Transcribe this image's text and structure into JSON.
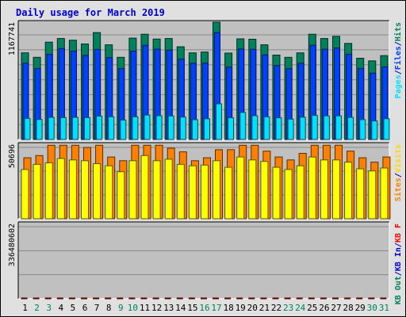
{
  "chart_data": {
    "type": "bar",
    "title": "Daily usage for March 2019",
    "categories": [
      "1",
      "2",
      "3",
      "4",
      "5",
      "6",
      "7",
      "8",
      "9",
      "10",
      "11",
      "12",
      "13",
      "14",
      "15",
      "16",
      "17",
      "18",
      "19",
      "20",
      "21",
      "22",
      "23",
      "24",
      "25",
      "26",
      "27",
      "28",
      "29",
      "30",
      "31"
    ],
    "weekend_days": [
      "2",
      "3",
      "9",
      "10",
      "16",
      "17",
      "23",
      "24",
      "30",
      "31"
    ],
    "panels": [
      {
        "id": "hits",
        "ymax_label": "1167741",
        "ylim": [
          0,
          1167741
        ],
        "legend": [
          {
            "text": "Hits",
            "color": "#00805c"
          },
          {
            "text": "/",
            "color": "#0000cc"
          },
          {
            "text": "Files",
            "color": "#0040ff"
          },
          {
            "text": "/",
            "color": "#0000cc"
          },
          {
            "text": "Pages",
            "color": "#00e0ff"
          }
        ],
        "series": [
          {
            "name": "Hits",
            "color": "#00805c",
            "values": [
              862000,
              818000,
              969000,
              1005000,
              989000,
              951000,
              1064000,
              943000,
              818000,
              1009000,
              1048000,
              1000000,
              1005000,
              923000,
              862000,
              870000,
              1167741,
              860000,
              1002000,
              998000,
              943000,
              840000,
              818000,
              862000,
              1048000,
              1005000,
              1027000,
              956000,
              809000,
              783000,
              835000
            ]
          },
          {
            "name": "Files",
            "color": "#0040ff",
            "values": [
              759000,
              707000,
              848000,
              905000,
              880000,
              837000,
              896000,
              816000,
              705000,
              880000,
              937000,
              899000,
              889000,
              801000,
              759000,
              759000,
              1064000,
              721000,
              901000,
              897000,
              843000,
              736000,
              705000,
              759000,
              937000,
              899000,
              911000,
              849000,
              707000,
              660000,
              723000
            ]
          },
          {
            "name": "Pages",
            "color": "#00e0ff",
            "values": [
              210000,
              200000,
              220000,
              218000,
              220000,
              218000,
              233000,
              226000,
              193000,
              226000,
              244000,
              237000,
              234000,
              223000,
              197000,
              207000,
              355000,
              216000,
              269000,
              237000,
              226000,
              216000,
              203000,
              222000,
              240000,
              234000,
              235000,
              220000,
              198000,
              185000,
              207000
            ]
          }
        ]
      },
      {
        "id": "visits",
        "ymax_label": "50696",
        "ylim": [
          0,
          50696
        ],
        "legend": [
          {
            "text": "Visits",
            "color": "#ffd700"
          },
          {
            "text": "/",
            "color": "#0000cc"
          },
          {
            "text": "Sites",
            "color": "#ff8000"
          }
        ],
        "series": [
          {
            "name": "Visits",
            "color": "#ffff00",
            "values": [
              33500,
              37000,
              38000,
              41000,
              40000,
              39500,
              37500,
              36000,
              32000,
              39500,
              43000,
              39500,
              40500,
              37000,
              36000,
              36500,
              39500,
              35000,
              42000,
              40000,
              39000,
              35000,
              33500,
              36000,
              42000,
              40000,
              40000,
              38500,
              34000,
              32500,
              34500
            ]
          },
          {
            "name": "Sites",
            "color": "#ff8000",
            "values": [
              41500,
              43000,
              50000,
              50000,
              50000,
              48500,
              50000,
              42000,
              39500,
              50000,
              50000,
              50000,
              48000,
              45500,
              39500,
              41500,
              47000,
              47000,
              50000,
              50000,
              46000,
              42000,
              40000,
              44500,
              50000,
              50000,
              50000,
              46000,
              41500,
              38500,
              42000
            ]
          }
        ]
      },
      {
        "id": "kbytes",
        "ymax_label": "336480602",
        "ylim": [
          0,
          336480602
        ],
        "legend": [
          {
            "text": "KB F",
            "color": "#ff0000"
          },
          {
            "text": "/",
            "color": "#0000cc"
          },
          {
            "text": "KB In",
            "color": "#0000cc"
          },
          {
            "text": "/",
            "color": "#0000cc"
          },
          {
            "text": "KB Out",
            "color": "#00805c"
          }
        ],
        "series": [
          {
            "name": "KB F",
            "color": "#ff0000",
            "values": [
              261000,
              250000,
              294000,
              294000,
              276000,
              270000,
              288000,
              276000,
              229000,
              294000,
              296000,
              276000,
              285000,
              229000,
              285000,
              282000,
              276000,
              306000,
              270000,
              285000,
              254000,
              229000,
              223000,
              294000,
              356000,
              320000,
              300000,
              312000,
              258000,
              212000,
              229000
            ]
          }
        ]
      }
    ]
  }
}
